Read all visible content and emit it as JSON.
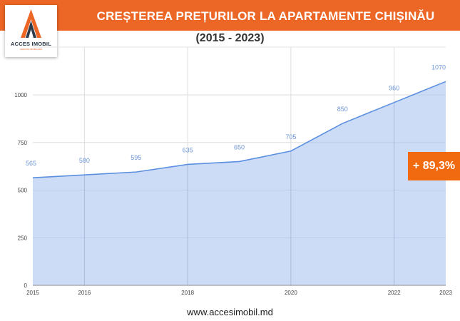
{
  "header": {
    "title": "CREȘTEREA PREȚURILOR LA APARTAMENTE CHIȘINĂU",
    "subtitle": "(2015 - 2023)"
  },
  "logo": {
    "name": "ACCES IMOBIL",
    "tagline": "AGENȚIE IMOBILIARĂ"
  },
  "badge": {
    "label": "+ 89,3%"
  },
  "footer": {
    "url": "www.accesimobil.md"
  },
  "colors": {
    "brand": "#ec6625",
    "line": "#5b8fe0",
    "fill": "#c9daf6",
    "label": "#6e95d6",
    "badge": "#f26a10"
  },
  "chart_data": {
    "type": "area",
    "title": "CREȘTEREA PREȚURILOR LA APARTAMENTE CHIȘINĂU",
    "subtitle": "(2015 - 2023)",
    "x": [
      2015,
      2016,
      2017,
      2018,
      2019,
      2020,
      2021,
      2022,
      2023
    ],
    "values": [
      565,
      580,
      595,
      635,
      650,
      705,
      850,
      960,
      1070
    ],
    "data_labels": [
      "565",
      "580",
      "595",
      "635",
      "650",
      "705",
      "850",
      "960",
      "1070"
    ],
    "x_tick_labels": [
      "2015",
      "2016",
      "2018",
      "2020",
      "2022",
      "2023"
    ],
    "y_ticks": [
      0,
      250,
      500,
      750,
      1000
    ],
    "y_tick_labels": [
      "0",
      "250",
      "500",
      "750",
      "1000"
    ],
    "xlabel": "",
    "ylabel": "",
    "ylim": [
      0,
      1100
    ],
    "grid": true,
    "legend": "none",
    "annotations": [
      "+ 89,3%"
    ]
  }
}
